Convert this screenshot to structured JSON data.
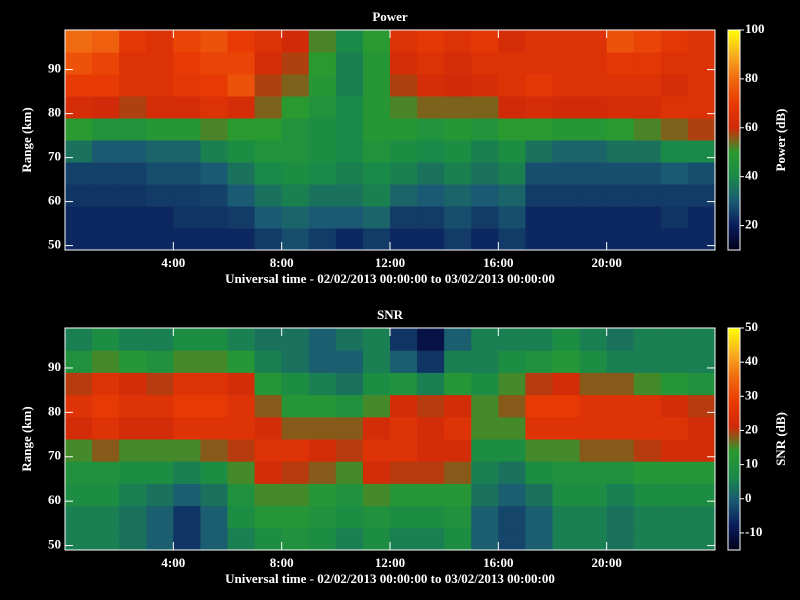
{
  "chart_data": [
    {
      "type": "heatmap",
      "title": "Power",
      "xlabel": "Universal time - 02/02/2013 00:00:00 to 03/02/2013 00:00:00",
      "ylabel": "Range (km)",
      "colorbar_label": "Power (dB)",
      "xbins": [
        0,
        1,
        2,
        3,
        4,
        5,
        6,
        7,
        8,
        9,
        10,
        11,
        12,
        13,
        14,
        15,
        16,
        17,
        18,
        19,
        20,
        21,
        22,
        23,
        24
      ],
      "ybins": [
        49,
        54,
        59,
        64,
        69,
        74,
        79,
        84,
        89,
        94,
        99
      ],
      "values": [
        [
          22,
          22,
          22,
          22,
          22,
          22,
          22,
          25,
          28,
          25,
          22,
          25,
          22,
          22,
          25,
          22,
          25,
          22,
          22,
          22,
          22,
          22,
          22,
          22
        ],
        [
          22,
          22,
          22,
          22,
          24,
          24,
          25,
          30,
          32,
          30,
          30,
          32,
          25,
          25,
          28,
          25,
          28,
          22,
          22,
          22,
          22,
          22,
          24,
          22
        ],
        [
          24,
          24,
          24,
          25,
          25,
          26,
          30,
          35,
          38,
          35,
          35,
          38,
          32,
          30,
          32,
          30,
          32,
          25,
          25,
          25,
          25,
          25,
          25,
          25
        ],
        [
          26,
          26,
          26,
          28,
          28,
          30,
          35,
          40,
          42,
          40,
          38,
          40,
          38,
          35,
          38,
          35,
          38,
          28,
          28,
          28,
          28,
          28,
          30,
          28
        ],
        [
          35,
          30,
          30,
          32,
          32,
          38,
          42,
          45,
          45,
          42,
          40,
          45,
          42,
          40,
          42,
          38,
          42,
          35,
          32,
          32,
          35,
          35,
          40,
          40
        ],
        [
          50,
          45,
          45,
          48,
          48,
          52,
          50,
          50,
          45,
          42,
          40,
          48,
          48,
          45,
          48,
          45,
          50,
          50,
          48,
          48,
          50,
          52,
          55,
          58
        ],
        [
          62,
          60,
          58,
          62,
          62,
          65,
          62,
          55,
          50,
          45,
          40,
          48,
          52,
          55,
          55,
          55,
          60,
          62,
          60,
          60,
          62,
          62,
          65,
          65
        ],
        [
          70,
          70,
          65,
          65,
          68,
          70,
          75,
          58,
          55,
          48,
          38,
          48,
          58,
          62,
          60,
          62,
          65,
          68,
          65,
          65,
          65,
          65,
          62,
          65
        ],
        [
          75,
          72,
          65,
          65,
          70,
          72,
          72,
          62,
          58,
          50,
          38,
          48,
          62,
          65,
          62,
          65,
          65,
          65,
          65,
          65,
          68,
          68,
          65,
          65
        ],
        [
          80,
          78,
          68,
          65,
          72,
          75,
          70,
          65,
          60,
          52,
          40,
          50,
          65,
          68,
          65,
          68,
          62,
          65,
          65,
          65,
          75,
          72,
          68,
          65
        ]
      ],
      "xlim": [
        0,
        24
      ],
      "ylim": [
        49,
        99
      ],
      "xticks": [
        {
          "value": 4,
          "label": "4:00"
        },
        {
          "value": 8,
          "label": "8:00"
        },
        {
          "value": 12,
          "label": "12:00"
        },
        {
          "value": 16,
          "label": "16:00"
        },
        {
          "value": 20,
          "label": "20:00"
        }
      ],
      "yticks": [
        50,
        60,
        70,
        80,
        90
      ],
      "zlim": [
        10,
        100
      ],
      "zticks": [
        20,
        40,
        60,
        80,
        100
      ],
      "colorscale": [
        "#000018",
        "#0a1c5c",
        "#1a5a72",
        "#1a8a48",
        "#2a9a30",
        "#d02a08",
        "#e83a04",
        "#f06a10",
        "#f8b020",
        "#ffff00"
      ]
    },
    {
      "type": "heatmap",
      "title": "SNR",
      "xlabel": "Universal time - 02/02/2013 00:00:00 to 03/02/2013 00:00:00",
      "ylabel": "Range (km)",
      "colorbar_label": "SNR (dB)",
      "xbins": [
        0,
        1,
        2,
        3,
        4,
        5,
        6,
        7,
        8,
        9,
        10,
        11,
        12,
        13,
        14,
        15,
        16,
        17,
        18,
        19,
        20,
        21,
        22,
        23,
        24
      ],
      "ybins": [
        49,
        54,
        59,
        64,
        69,
        74,
        79,
        84,
        89,
        94,
        99
      ],
      "values": [
        [
          5,
          5,
          3,
          0,
          -5,
          0,
          5,
          8,
          10,
          8,
          5,
          8,
          5,
          5,
          8,
          0,
          -3,
          0,
          5,
          5,
          3,
          5,
          5,
          5
        ],
        [
          5,
          5,
          3,
          0,
          -5,
          0,
          8,
          12,
          12,
          10,
          8,
          10,
          8,
          8,
          10,
          0,
          -3,
          0,
          5,
          5,
          3,
          5,
          5,
          5
        ],
        [
          8,
          8,
          5,
          3,
          0,
          3,
          10,
          15,
          15,
          12,
          10,
          15,
          12,
          12,
          12,
          3,
          0,
          3,
          8,
          8,
          5,
          8,
          8,
          8
        ],
        [
          10,
          10,
          8,
          8,
          5,
          8,
          15,
          22,
          20,
          18,
          15,
          22,
          20,
          20,
          18,
          5,
          3,
          8,
          10,
          10,
          10,
          12,
          12,
          12
        ],
        [
          15,
          18,
          15,
          15,
          15,
          18,
          20,
          25,
          25,
          22,
          20,
          25,
          25,
          22,
          22,
          8,
          8,
          15,
          15,
          18,
          18,
          20,
          22,
          22
        ],
        [
          22,
          25,
          22,
          22,
          25,
          25,
          25,
          22,
          18,
          18,
          18,
          22,
          25,
          22,
          25,
          15,
          15,
          25,
          25,
          25,
          25,
          25,
          25,
          22
        ],
        [
          25,
          28,
          25,
          25,
          28,
          28,
          25,
          18,
          12,
          12,
          10,
          15,
          22,
          20,
          22,
          15,
          18,
          28,
          28,
          25,
          25,
          25,
          22,
          20
        ],
        [
          20,
          25,
          22,
          20,
          25,
          25,
          22,
          12,
          8,
          5,
          3,
          8,
          10,
          5,
          12,
          8,
          15,
          20,
          22,
          18,
          18,
          15,
          12,
          10
        ],
        [
          10,
          15,
          12,
          10,
          15,
          15,
          12,
          5,
          3,
          0,
          0,
          5,
          0,
          -5,
          5,
          5,
          8,
          10,
          12,
          8,
          5,
          5,
          5,
          5
        ],
        [
          5,
          8,
          5,
          5,
          8,
          8,
          5,
          3,
          3,
          0,
          3,
          5,
          -5,
          -10,
          0,
          5,
          5,
          5,
          8,
          5,
          3,
          5,
          5,
          5
        ]
      ],
      "xlim": [
        0,
        24
      ],
      "ylim": [
        49,
        99
      ],
      "xticks": [
        {
          "value": 4,
          "label": "4:00"
        },
        {
          "value": 8,
          "label": "8:00"
        },
        {
          "value": 12,
          "label": "12:00"
        },
        {
          "value": 16,
          "label": "16:00"
        },
        {
          "value": 20,
          "label": "20:00"
        }
      ],
      "yticks": [
        50,
        60,
        70,
        80,
        90
      ],
      "zlim": [
        -15,
        50
      ],
      "zticks": [
        -10,
        0,
        10,
        20,
        30,
        40,
        50
      ],
      "colorscale": [
        "#000018",
        "#0a1c5c",
        "#1a5a72",
        "#1a8a48",
        "#2a9a30",
        "#d02a08",
        "#e83a04",
        "#f06a10",
        "#f8b020",
        "#ffff00"
      ]
    }
  ]
}
